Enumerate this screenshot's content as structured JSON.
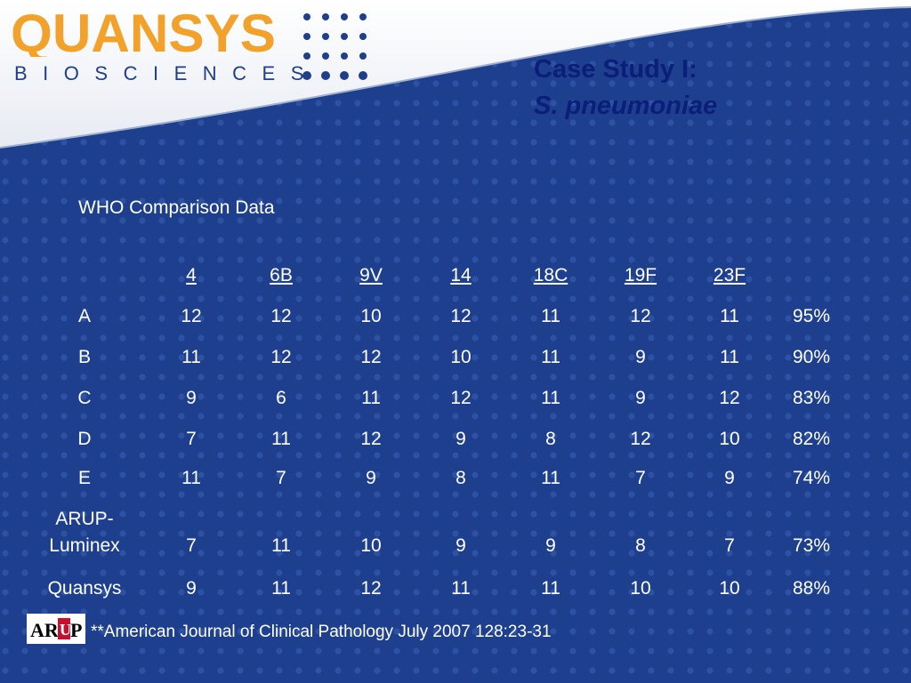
{
  "logo": {
    "company": "QUANSYS",
    "subtitle": "BIOSCIENCES",
    "brand_orange": "#f2a22a",
    "brand_blue": "#1f3f8c"
  },
  "title": {
    "line1": "Case Study I:",
    "line2": "S. pneumoniae"
  },
  "table": {
    "caption": "WHO Comparison Data",
    "headers": [
      "4",
      "6B",
      "9V",
      "14",
      "18C",
      "19F",
      "23F"
    ],
    "rows": [
      {
        "label": "A",
        "values": [
          "12",
          "12",
          "10",
          "12",
          "11",
          "12",
          "11"
        ],
        "percent": "95%"
      },
      {
        "label": "B",
        "values": [
          "11",
          "12",
          "12",
          "10",
          "11",
          "9",
          "11"
        ],
        "percent": "90%"
      },
      {
        "label": "C",
        "values": [
          "9",
          "6",
          "11",
          "12",
          "11",
          "9",
          "12"
        ],
        "percent": "83%"
      },
      {
        "label": "D",
        "values": [
          "7",
          "11",
          "12",
          "9",
          "8",
          "12",
          "10"
        ],
        "percent": "82%"
      },
      {
        "label": "E",
        "values": [
          "11",
          "7",
          "9",
          "8",
          "11",
          "7",
          "9"
        ],
        "percent": "74%"
      },
      {
        "label": "ARUP-",
        "label2": "Luminex",
        "values": [
          "7",
          "11",
          "10",
          "9",
          "9",
          "8",
          "7"
        ],
        "percent": "73%"
      },
      {
        "label": "Quansys",
        "values": [
          "9",
          "11",
          "12",
          "11",
          "11",
          "10",
          "10"
        ],
        "percent": "88%"
      }
    ]
  },
  "footnote": {
    "logo_text": "ARUP",
    "text": "**American Journal of Clinical Pathology July 2007 128:23-31"
  },
  "colors": {
    "background": "#1d3f8e",
    "dot": "#2e52a3",
    "title": "#0a1e7a",
    "text": "#ffffff"
  }
}
